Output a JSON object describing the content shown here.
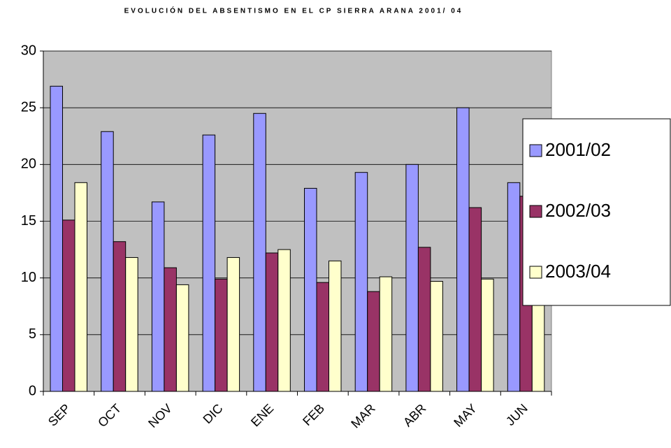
{
  "chart_data": {
    "type": "bar",
    "title": "EVOLUCIÓN DEL ABSENTISMO EN EL CP SIERRA ARANA 2001/ 04",
    "categories": [
      "SEP",
      "OCT",
      "NOV",
      "DIC",
      "ENE",
      "FEB",
      "MAR",
      "ABR",
      "MAY",
      "JUN"
    ],
    "series": [
      {
        "name": "2001/02",
        "color": "#9999ff",
        "values": [
          26.9,
          22.9,
          16.7,
          22.6,
          24.5,
          17.9,
          19.3,
          20.0,
          25.0,
          18.4
        ]
      },
      {
        "name": "2002/03",
        "color": "#993366",
        "values": [
          15.1,
          13.2,
          10.9,
          9.9,
          12.2,
          9.6,
          8.8,
          12.7,
          16.2,
          17.2
        ]
      },
      {
        "name": "2003/04",
        "color": "#ffffcc",
        "values": [
          18.4,
          11.8,
          9.4,
          11.8,
          12.5,
          11.5,
          10.1,
          9.7,
          9.9,
          9
        ]
      }
    ],
    "ylim": [
      0,
      30
    ],
    "yticks": [
      0,
      5,
      10,
      15,
      20,
      25,
      30
    ],
    "grid": true,
    "legend": "right"
  }
}
